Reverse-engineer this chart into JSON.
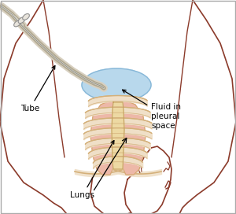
{
  "labels": {
    "lungs": "Lungs",
    "tube": "Tube",
    "fluid": "Fluid in\npleural\nspace"
  },
  "colors": {
    "body_outline": "#8B3A2A",
    "rib_fill": "#F0E0C8",
    "rib_outline": "#D4B07A",
    "lung_fill": "#EDB8A8",
    "lung_outline": "#D4A870",
    "fluid_fill": "#B8D8EC",
    "fluid_outline": "#88B8D8",
    "sternum_fill": "#EDD9A3",
    "sternum_outline": "#C4A060",
    "tube_color": "#D8D0C0",
    "tube_dark": "#909088",
    "text_color": "#000000",
    "background": "#FFFFFF"
  },
  "figsize": [
    3.0,
    2.72
  ],
  "dpi": 100
}
